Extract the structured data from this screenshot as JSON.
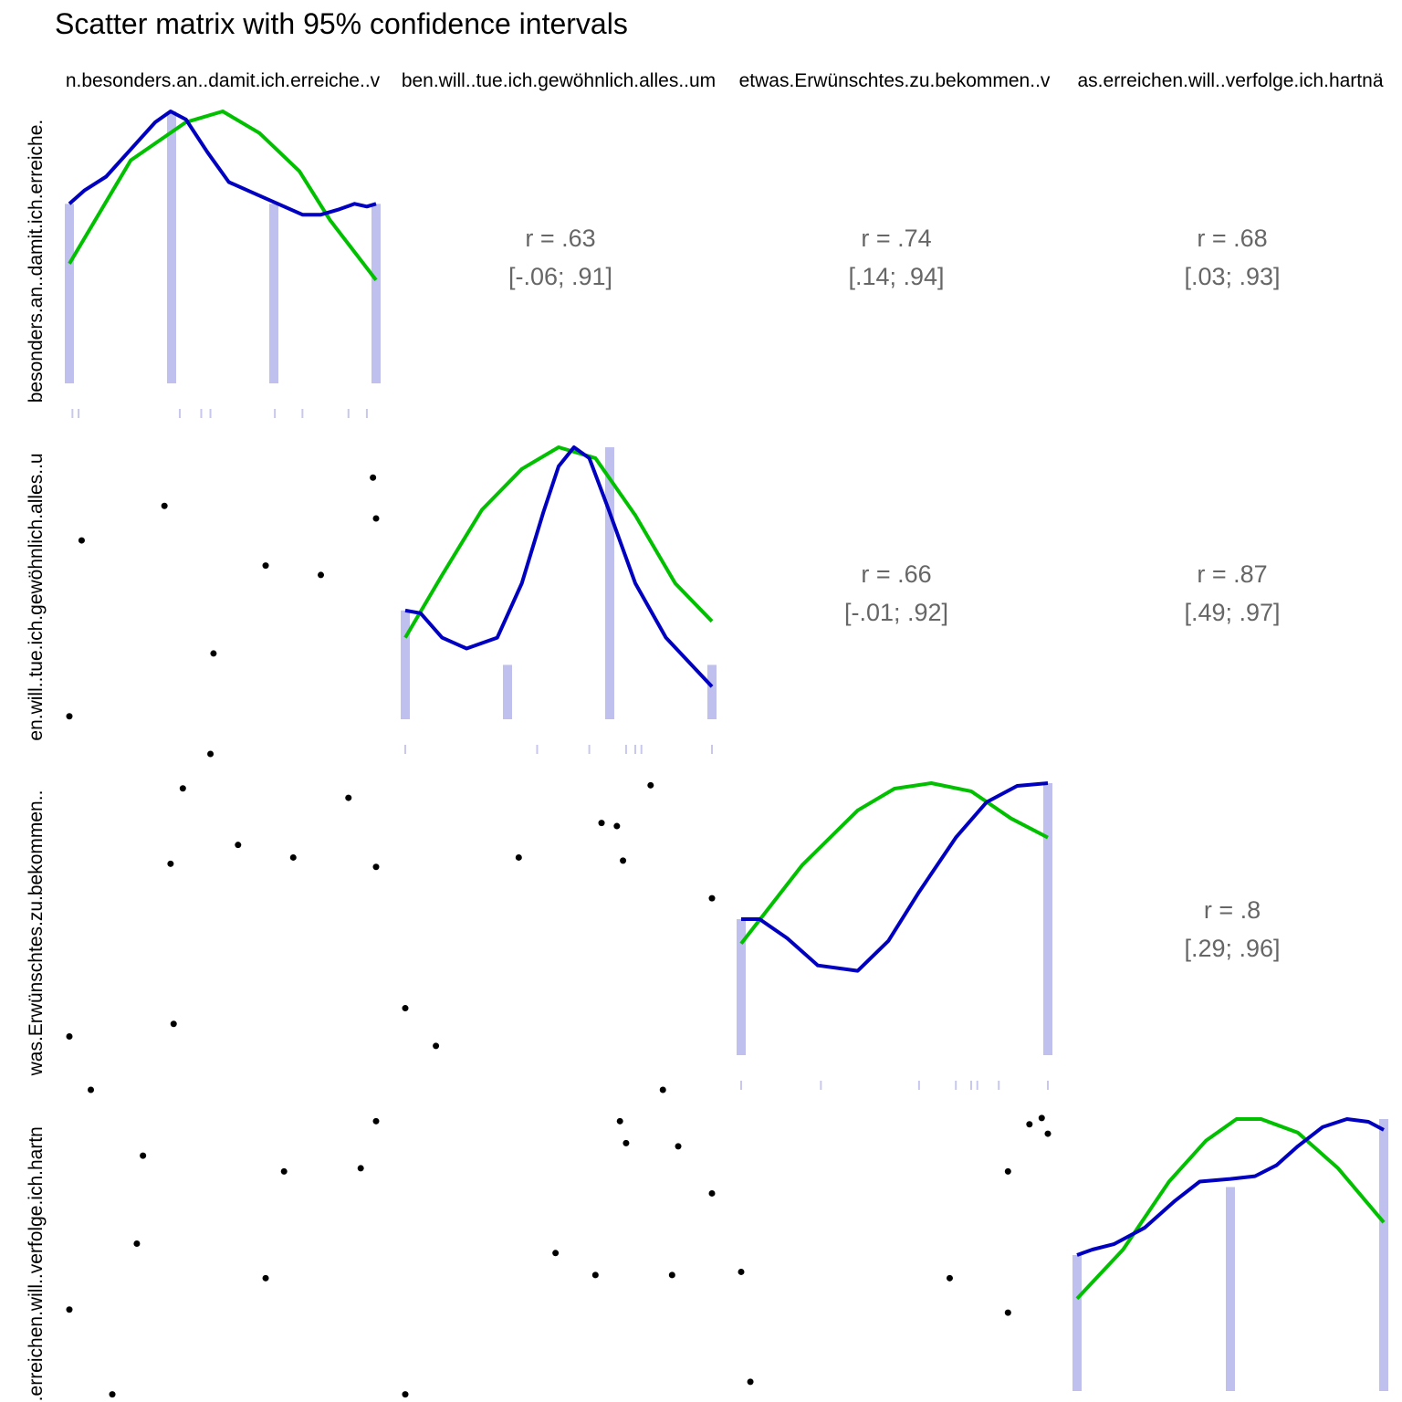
{
  "title": "Scatter matrix with 95% confidence intervals",
  "variables": [
    "…nn.besonders.an..damit.ich.erreiche..",
    "…ben.will..tue.ich.gewöhnlich.alles..um",
    "…etwas.Erwünschtes.zu.bekommen..v",
    "…as.erreichen.will..verfolge.ich.hartnäckig"
  ],
  "column_labels": [
    "n.besonders.an..damit.ich.erreiche..v",
    "ben.will..tue.ich.gewöhnlich.alles..um",
    "etwas.Erwünschtes.zu.bekommen..v",
    "as.erreichen.will..verfolge.ich.hartnä"
  ],
  "row_labels": [
    "besonders.an..damit.ich.erreiche.",
    "en.will..tue.ich.gewöhnlich.alles..u",
    "was.Erwünschtes.zu.bekommen..",
    "s.erreichen.will..verfolge.ich.hartn"
  ],
  "colors": {
    "density": "#0000c0",
    "normal": "#00c000",
    "histogram": "#c0c0ee",
    "rug": "#c8c8ee",
    "points": "#000000",
    "corr_text": "#666666"
  },
  "chart_data": {
    "type": "scatter",
    "layout": "pairs-matrix",
    "lower": "scatter",
    "diagonal": [
      "histogram",
      "density",
      "normal-curve",
      "rug"
    ],
    "upper": "correlation",
    "grid": false,
    "title": "Scatter matrix with 95% confidence intervals",
    "variables": [
      "…nn.besonders.an..damit.ich.erreiche..",
      "…ben.will..tue.ich.gewöhnlich.alles..um",
      "…etwas.Erwünschtes.zu.bekommen..v",
      "…as.erreichen.will..verfolge.ich.hartnäckig"
    ],
    "correlations": [
      {
        "row": 0,
        "col": 1,
        "r": "r = .63",
        "ci": "[-.06; .91]"
      },
      {
        "row": 0,
        "col": 2,
        "r": "r = .74",
        "ci": "[.14; .94]"
      },
      {
        "row": 0,
        "col": 3,
        "r": "r = .68",
        "ci": "[.03; .93]"
      },
      {
        "row": 1,
        "col": 2,
        "r": "r = .66",
        "ci": "[-.01; .92]"
      },
      {
        "row": 1,
        "col": 3,
        "r": "r = .87",
        "ci": "[.49; .97]"
      },
      {
        "row": 2,
        "col": 3,
        "r": "r = .8",
        "ci": "[.29; .96]"
      }
    ],
    "diagonals": [
      {
        "var": 0,
        "hist": [
          0.66,
          1.0,
          0.66,
          0.66
        ],
        "density": [
          [
            0.0,
            0.66
          ],
          [
            0.05,
            0.71
          ],
          [
            0.12,
            0.76
          ],
          [
            0.2,
            0.86
          ],
          [
            0.28,
            0.96
          ],
          [
            0.33,
            1.0
          ],
          [
            0.38,
            0.97
          ],
          [
            0.45,
            0.85
          ],
          [
            0.52,
            0.74
          ],
          [
            0.6,
            0.7
          ],
          [
            0.68,
            0.66
          ],
          [
            0.76,
            0.62
          ],
          [
            0.82,
            0.62
          ],
          [
            0.88,
            0.64
          ],
          [
            0.93,
            0.66
          ],
          [
            0.97,
            0.65
          ],
          [
            1.0,
            0.66
          ]
        ],
        "normal": [
          [
            0.0,
            0.44
          ],
          [
            0.2,
            0.82
          ],
          [
            0.38,
            0.96
          ],
          [
            0.5,
            1.0
          ],
          [
            0.62,
            0.92
          ],
          [
            0.75,
            0.78
          ],
          [
            0.85,
            0.6
          ],
          [
            1.0,
            0.38
          ]
        ],
        "rug": [
          0.01,
          0.03,
          0.36,
          0.43,
          0.46,
          0.67,
          0.76,
          0.91,
          0.97
        ]
      },
      {
        "var": 1,
        "hist": [
          0.4,
          0.2,
          1.0,
          0.2
        ],
        "density": [
          [
            0.0,
            0.4
          ],
          [
            0.05,
            0.39
          ],
          [
            0.12,
            0.3
          ],
          [
            0.2,
            0.26
          ],
          [
            0.3,
            0.3
          ],
          [
            0.38,
            0.5
          ],
          [
            0.45,
            0.76
          ],
          [
            0.5,
            0.93
          ],
          [
            0.55,
            1.0
          ],
          [
            0.6,
            0.96
          ],
          [
            0.66,
            0.78
          ],
          [
            0.75,
            0.5
          ],
          [
            0.85,
            0.3
          ],
          [
            0.95,
            0.18
          ],
          [
            1.0,
            0.12
          ]
        ],
        "normal": [
          [
            0.0,
            0.3
          ],
          [
            0.12,
            0.53
          ],
          [
            0.25,
            0.77
          ],
          [
            0.38,
            0.92
          ],
          [
            0.5,
            1.0
          ],
          [
            0.62,
            0.96
          ],
          [
            0.75,
            0.75
          ],
          [
            0.88,
            0.5
          ],
          [
            1.0,
            0.36
          ]
        ],
        "rug": [
          0.0,
          0.43,
          0.6,
          0.72,
          0.75,
          0.77,
          1.0
        ]
      },
      {
        "var": 2,
        "hist": [
          0.5,
          1.0
        ],
        "density": [
          [
            0.0,
            0.5
          ],
          [
            0.06,
            0.5
          ],
          [
            0.15,
            0.43
          ],
          [
            0.25,
            0.33
          ],
          [
            0.38,
            0.31
          ],
          [
            0.48,
            0.42
          ],
          [
            0.58,
            0.6
          ],
          [
            0.7,
            0.8
          ],
          [
            0.8,
            0.93
          ],
          [
            0.9,
            0.99
          ],
          [
            1.0,
            1.0
          ]
        ],
        "normal": [
          [
            0.0,
            0.41
          ],
          [
            0.2,
            0.7
          ],
          [
            0.38,
            0.9
          ],
          [
            0.5,
            0.98
          ],
          [
            0.62,
            1.0
          ],
          [
            0.75,
            0.97
          ],
          [
            0.88,
            0.87
          ],
          [
            1.0,
            0.8
          ]
        ],
        "rug": [
          0.0,
          0.26,
          0.58,
          0.7,
          0.75,
          0.77,
          0.84,
          1.0
        ]
      },
      {
        "var": 3,
        "hist": [
          0.5,
          0.75,
          1.0
        ],
        "density": [
          [
            0.0,
            0.5
          ],
          [
            0.05,
            0.52
          ],
          [
            0.12,
            0.54
          ],
          [
            0.22,
            0.6
          ],
          [
            0.32,
            0.7
          ],
          [
            0.4,
            0.77
          ],
          [
            0.5,
            0.78
          ],
          [
            0.58,
            0.79
          ],
          [
            0.65,
            0.83
          ],
          [
            0.72,
            0.9
          ],
          [
            0.8,
            0.97
          ],
          [
            0.88,
            1.0
          ],
          [
            0.95,
            0.99
          ],
          [
            1.0,
            0.96
          ]
        ],
        "normal": [
          [
            0.0,
            0.34
          ],
          [
            0.15,
            0.52
          ],
          [
            0.3,
            0.77
          ],
          [
            0.42,
            0.92
          ],
          [
            0.52,
            1.0
          ],
          [
            0.6,
            1.0
          ],
          [
            0.72,
            0.95
          ],
          [
            0.85,
            0.82
          ],
          [
            1.0,
            0.62
          ]
        ],
        "rug": [
          0.0,
          0.12,
          0.44,
          0.46,
          0.7,
          0.8,
          0.87,
          0.97,
          1.0
        ]
      }
    ],
    "scatter": [
      {
        "row": 1,
        "col": 0,
        "points": [
          [
            0.04,
            0.68
          ],
          [
            0.0,
            0.12
          ],
          [
            0.31,
            0.79
          ],
          [
            0.47,
            0.32
          ],
          [
            0.64,
            0.6
          ],
          [
            0.82,
            0.57
          ],
          [
            0.99,
            0.88
          ],
          [
            1.0,
            0.75
          ],
          [
            0.46,
            0.0
          ]
        ]
      },
      {
        "row": 2,
        "col": 0,
        "points": [
          [
            0.0,
            0.17
          ],
          [
            0.07,
            0.0
          ],
          [
            0.33,
            0.72
          ],
          [
            0.34,
            0.21
          ],
          [
            0.37,
            0.96
          ],
          [
            0.55,
            0.78
          ],
          [
            0.73,
            0.74
          ],
          [
            0.91,
            0.93
          ],
          [
            1.0,
            0.71
          ]
        ]
      },
      {
        "row": 2,
        "col": 1,
        "points": [
          [
            0.0,
            0.26
          ],
          [
            0.1,
            0.14
          ],
          [
            0.37,
            0.74
          ],
          [
            0.64,
            0.85
          ],
          [
            0.69,
            0.84
          ],
          [
            0.71,
            0.73
          ],
          [
            0.8,
            0.97
          ],
          [
            0.84,
            0.0
          ],
          [
            1.0,
            0.61
          ]
        ]
      },
      {
        "row": 3,
        "col": 0,
        "points": [
          [
            0.0,
            0.37
          ],
          [
            0.14,
            0.1
          ],
          [
            0.22,
            0.58
          ],
          [
            0.24,
            0.86
          ],
          [
            0.48,
            0.0
          ],
          [
            0.64,
            0.47
          ],
          [
            0.7,
            0.81
          ],
          [
            0.95,
            0.82
          ],
          [
            1.0,
            0.97
          ]
        ]
      },
      {
        "row": 3,
        "col": 1,
        "points": [
          [
            0.0,
            0.1
          ],
          [
            0.03,
            0.0
          ],
          [
            0.49,
            0.55
          ],
          [
            0.62,
            0.48
          ],
          [
            0.7,
            0.97
          ],
          [
            0.72,
            0.9
          ],
          [
            0.87,
            0.48
          ],
          [
            0.89,
            0.89
          ],
          [
            1.0,
            0.74
          ]
        ]
      },
      {
        "row": 3,
        "col": 2,
        "points": [
          [
            0.0,
            0.0
          ],
          [
            0.0,
            0.49
          ],
          [
            0.03,
            0.14
          ],
          [
            0.68,
            0.47
          ],
          [
            0.87,
            0.36
          ],
          [
            0.87,
            0.81
          ],
          [
            0.94,
            0.96
          ],
          [
            1.0,
            0.93
          ],
          [
            0.98,
            0.98
          ]
        ]
      }
    ]
  }
}
